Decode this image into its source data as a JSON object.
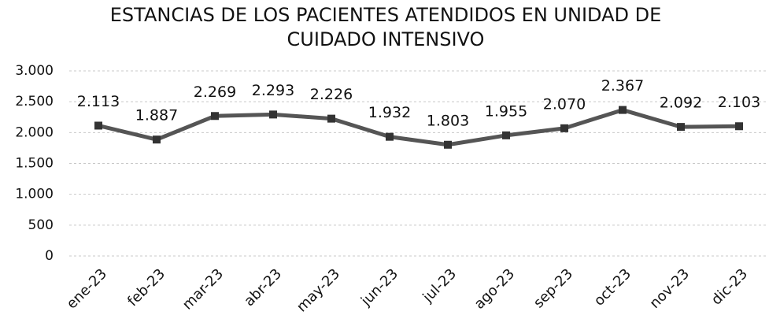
{
  "chart_data": {
    "type": "line",
    "title": "ESTANCIAS DE LOS PACIENTES ATENDIDOS EN UNIDAD DE CUIDADO INTENSIVO",
    "categories": [
      "ene-23",
      "feb-23",
      "mar-23",
      "abr-23",
      "may-23",
      "jun-23",
      "jul-23",
      "ago-23",
      "sep-23",
      "oct-23",
      "nov-23",
      "dic-23"
    ],
    "values": [
      2113,
      1887,
      2269,
      2293,
      2226,
      1932,
      1803,
      1955,
      2070,
      2367,
      2092,
      2103
    ],
    "value_labels": [
      "2.113",
      "1.887",
      "2.269",
      "2.293",
      "2.226",
      "1.932",
      "1.803",
      "1.955",
      "2.070",
      "2.367",
      "2.092",
      "2.103"
    ],
    "color": "#555555",
    "ylim": [
      0,
      3000
    ],
    "yticks": [
      0,
      500,
      {
        "value": 1000,
        "label": "1.000"
      },
      {
        "value": 1500,
        "label": "1.500"
      },
      {
        "value": 2000,
        "label": "2.000"
      },
      {
        "value": 2500,
        "label": "2.500"
      },
      {
        "value": 3000,
        "label": "3.000"
      }
    ],
    "grid": true
  }
}
